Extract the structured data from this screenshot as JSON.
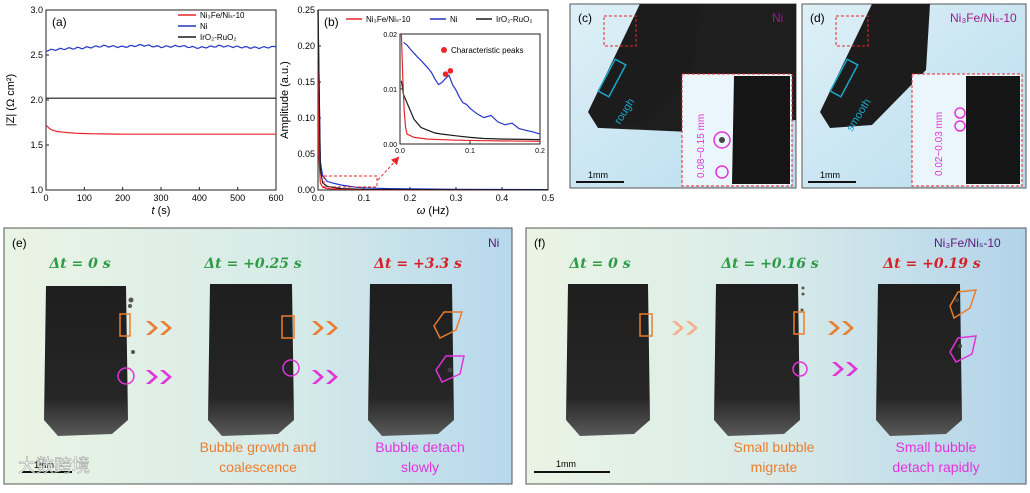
{
  "chart_data": [
    {
      "type": "line",
      "panel": "(a)",
      "xlabel_var": "t",
      "xlabel_unit": "(s)",
      "ylabel": "|Z| (Ω cm²)",
      "xlim": [
        0,
        600
      ],
      "ylim": [
        1.0,
        3.0
      ],
      "xticks": [
        "0",
        "100",
        "200",
        "300",
        "400",
        "500",
        "600"
      ],
      "yticks": [
        "1.0",
        "1.5",
        "2.0",
        "2.5",
        "3.0"
      ],
      "legend": [
        "Ni₃Fe/Niₛ-10",
        "Ni",
        "IrO₂-RuO₂"
      ],
      "series": [
        {
          "name": "Ni₃Fe/Niₛ-10",
          "color": "#e8262b",
          "x": [
            0,
            5,
            10,
            20,
            30,
            50,
            80,
            120,
            200,
            300,
            400,
            500,
            600
          ],
          "y": [
            1.72,
            1.7,
            1.68,
            1.66,
            1.65,
            1.64,
            1.63,
            1.625,
            1.62,
            1.62,
            1.62,
            1.62,
            1.62
          ]
        },
        {
          "name": "Ni",
          "color": "#2336c6",
          "x": [
            0,
            50,
            100,
            150,
            200,
            250,
            300,
            350,
            400,
            450,
            500,
            550,
            600
          ],
          "y": [
            2.55,
            2.57,
            2.58,
            2.6,
            2.59,
            2.61,
            2.59,
            2.6,
            2.58,
            2.6,
            2.59,
            2.58,
            2.59
          ]
        },
        {
          "name": "IrO₂-RuO₂",
          "color": "#1a1a1a",
          "x": [
            0,
            100,
            200,
            300,
            400,
            500,
            600
          ],
          "y": [
            2.02,
            2.02,
            2.02,
            2.02,
            2.02,
            2.02,
            2.02
          ]
        }
      ]
    },
    {
      "type": "line",
      "panel": "(b)",
      "xlabel_var": "ω",
      "xlabel_unit": "(Hz)",
      "ylabel": "Amplitude (a.u.)",
      "xlim": [
        0,
        0.5
      ],
      "ylim": [
        0,
        0.25
      ],
      "xticks": [
        "0.0",
        "0.1",
        "0.2",
        "0.3",
        "0.4",
        "0.5"
      ],
      "yticks": [
        "0.00",
        "0.05",
        "0.10",
        "0.15",
        "0.20",
        "0.25"
      ],
      "legend": [
        "Ni₃Fe/Niₛ-10",
        "Ni",
        "IrO₂-RuO₂"
      ],
      "series": [
        {
          "name": "Ni₃Fe/Niₛ-10",
          "color": "#e8262b",
          "x": [
            0,
            0.002,
            0.005,
            0.01,
            0.02,
            0.05,
            0.1,
            0.2,
            0.5
          ],
          "y": [
            0.25,
            0.05,
            0.01,
            0.004,
            0.002,
            0.001,
            0.0005,
            0.0002,
            0.0001
          ]
        },
        {
          "name": "Ni",
          "color": "#2336c6",
          "x": [
            0,
            0.005,
            0.01,
            0.02,
            0.03,
            0.05,
            0.08,
            0.1,
            0.15,
            0.2,
            0.3,
            0.5
          ],
          "y": [
            0.25,
            0.04,
            0.02,
            0.012,
            0.01,
            0.007,
            0.004,
            0.003,
            0.002,
            0.0015,
            0.001,
            0.0005
          ]
        },
        {
          "name": "IrO₂-RuO₂",
          "color": "#1a1a1a",
          "x": [
            0,
            0.005,
            0.01,
            0.02,
            0.05,
            0.1,
            0.2,
            0.5
          ],
          "y": [
            0.25,
            0.03,
            0.01,
            0.005,
            0.002,
            0.001,
            0.0005,
            0.0002
          ]
        }
      ],
      "inset": {
        "xlim": [
          0,
          0.2
        ],
        "ylim": [
          0,
          0.02
        ],
        "xticks": [
          "0.0",
          "0.1",
          "0.2"
        ],
        "yticks": [
          "0.00",
          "0.01",
          "0.02"
        ],
        "legend": "Characteristic peaks",
        "peaks": [
          [
            0.065,
            0.0127
          ],
          [
            0.072,
            0.0133
          ]
        ],
        "series": [
          {
            "name": "Ni",
            "color": "#2336c6",
            "x": [
              0.005,
              0.01,
              0.015,
              0.02,
              0.025,
              0.03,
              0.035,
              0.04,
              0.045,
              0.05,
              0.055,
              0.06,
              0.065,
              0.07,
              0.075,
              0.08,
              0.085,
              0.09,
              0.095,
              0.1,
              0.11,
              0.12,
              0.13,
              0.14,
              0.15,
              0.16,
              0.17,
              0.18,
              0.19,
              0.2
            ],
            "y": [
              0.0185,
              0.018,
              0.0172,
              0.0165,
              0.0158,
              0.0152,
              0.0145,
              0.0138,
              0.013,
              0.0118,
              0.0108,
              0.0112,
              0.0119,
              0.0125,
              0.0108,
              0.0098,
              0.0085,
              0.0075,
              0.0072,
              0.0065,
              0.0055,
              0.0048,
              0.0052,
              0.004,
              0.0035,
              0.0038,
              0.0028,
              0.0025,
              0.0022,
              0.0018
            ]
          },
          {
            "name": "IrO₂-RuO₂",
            "color": "#1a1a1a",
            "x": [
              0.002,
              0.005,
              0.01,
              0.015,
              0.02,
              0.03,
              0.04,
              0.05,
              0.06,
              0.08,
              0.1,
              0.12,
              0.15,
              0.2
            ],
            "y": [
              0.0115,
              0.009,
              0.0075,
              0.006,
              0.0045,
              0.003,
              0.0025,
              0.002,
              0.0018,
              0.0015,
              0.0012,
              0.001,
              0.0009,
              0.0008
            ]
          },
          {
            "name": "Ni₃Fe/Niₛ-10",
            "color": "#e8262b",
            "x": [
              0.002,
              0.004,
              0.006,
              0.008,
              0.01,
              0.02,
              0.04,
              0.08,
              0.12,
              0.2
            ],
            "y": [
              0.02,
              0.012,
              0.006,
              0.003,
              0.0018,
              0.0012,
              0.0009,
              0.0007,
              0.0006,
              0.0005
            ]
          }
        ]
      }
    }
  ],
  "panels": {
    "c": {
      "label": "(c)",
      "material": "Ni",
      "surface": "rough",
      "size": "0.08~0.15 mm",
      "scale": "1mm"
    },
    "d": {
      "label": "(d)",
      "material": "Ni₃Fe/Niₛ-10",
      "surface": "smooth",
      "size": "0.02~0.03 mm",
      "scale": "1mm"
    },
    "e": {
      "label": "(e)",
      "material": "Ni",
      "times": [
        "Δt = 0 s",
        "Δt = +0.25 s",
        "Δt = +3.3 s"
      ],
      "caption1": [
        "Bubble growth and",
        "coalescence"
      ],
      "caption2": [
        "Bubble detach",
        "slowly"
      ],
      "scale": "1mm"
    },
    "f": {
      "label": "(f)",
      "material": "Ni₃Fe/Niₛ-10",
      "times": [
        "Δt = 0 s",
        "Δt = +0.16 s",
        "Δt = +0.19 s"
      ],
      "caption1": [
        "Small bubble",
        "migrate"
      ],
      "caption2": [
        "Small bubble",
        "detach rapidly"
      ],
      "scale": "1mm"
    }
  },
  "watermark": "大数跨境",
  "colors": {
    "red": "#e8262b",
    "blue": "#2336c6",
    "green": "#2e9a45",
    "orange": "#e97d30",
    "magenta": "#e234d9",
    "cyan": "#1aa7c9",
    "darkred": "#d72026"
  }
}
